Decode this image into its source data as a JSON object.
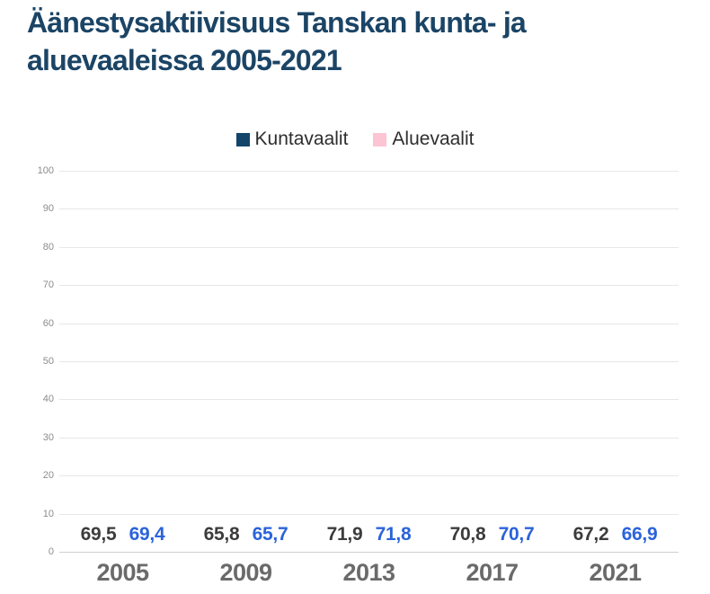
{
  "page": {
    "title_lines": [
      "Äänestysaktiivisuus Tanskan kunta- ja",
      "aluevaaleissa 2005-2021"
    ]
  },
  "colors": {
    "background": "#ffffff",
    "title": "#1b4465",
    "kuntavaalit_bar": "#13456a",
    "aluevaalit_bar": "#fdc5d3",
    "kuntavaalit_value_label": "#3c3c3c",
    "aluevaalit_value_label": "#2b63da",
    "x_axis_label": "#6a6a6a",
    "y_tick_label": "#8c8c8c",
    "gridline": "#e7e7e7",
    "baseline": "#cfcfcf",
    "legend_text": "#2e2e2e"
  },
  "chart_data": {
    "type": "bar",
    "title": "Äänestysaktiivisuus Tanskan kunta- ja aluevaaleissa 2005-2021",
    "categories": [
      "2005",
      "2009",
      "2013",
      "2017",
      "2021"
    ],
    "series": [
      {
        "name": "Kuntavaalit",
        "values": [
          69.5,
          65.8,
          71.9,
          70.8,
          67.2
        ],
        "display_values": [
          "69,5",
          "65,8",
          "71,9",
          "70,8",
          "67,2"
        ],
        "color": "#13456a",
        "label_color": "#3c3c3c"
      },
      {
        "name": "Aluevaalit",
        "values": [
          69.4,
          65.7,
          71.8,
          70.7,
          66.9
        ],
        "display_values": [
          "69,4",
          "65,7",
          "71,8",
          "70,7",
          "66,9"
        ],
        "color": "#fdc5d3",
        "label_color": "#2b63da"
      }
    ],
    "xlabel": "",
    "ylabel": "",
    "ylim": [
      0,
      100
    ],
    "yticks": [
      0,
      10,
      20,
      30,
      40,
      50,
      60,
      70,
      80,
      90,
      100
    ],
    "grid": true,
    "legend_position": "top-center",
    "value_decimal_separator": ","
  }
}
